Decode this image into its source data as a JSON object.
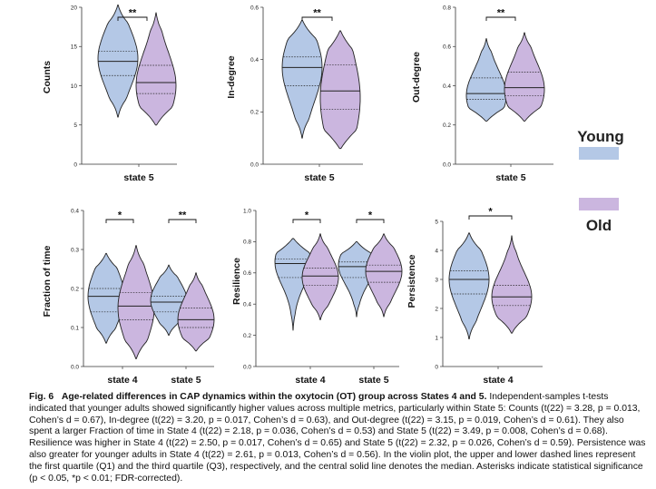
{
  "legend": {
    "young_label": "Young",
    "old_label": "Old",
    "young_color": "#b4c8e6",
    "old_color": "#cbb6df"
  },
  "chart_data": [
    {
      "type": "violin",
      "panel": "counts",
      "ylabel": "Counts",
      "ylim": [
        0,
        20
      ],
      "yticks": [
        "0",
        "5",
        "10",
        "15",
        "20"
      ],
      "categories": [
        "state 5"
      ],
      "groups": [
        {
          "category": "state 5",
          "series": "Young",
          "min": 6,
          "q1": 11.3,
          "median": 13.1,
          "q3": 14.4,
          "max": 20.3,
          "mode": 13.5
        },
        {
          "category": "state 5",
          "series": "Old",
          "min": 5,
          "q1": 9.0,
          "median": 10.4,
          "q3": 12.6,
          "max": 19.3,
          "mode": 10.0
        }
      ],
      "significance": [
        {
          "category": "state 5",
          "label": "**"
        }
      ]
    },
    {
      "type": "violin",
      "panel": "in-degree",
      "ylabel": "In-degree",
      "ylim": [
        0,
        0.6
      ],
      "yticks": [
        "0.0",
        "0.2",
        "0.4",
        "0.6"
      ],
      "categories": [
        "state 5"
      ],
      "groups": [
        {
          "category": "state 5",
          "series": "Young",
          "min": 0.1,
          "q1": 0.3,
          "median": 0.37,
          "q3": 0.41,
          "max": 0.55,
          "mode": 0.37
        },
        {
          "category": "state 5",
          "series": "Old",
          "min": 0.06,
          "q1": 0.21,
          "median": 0.28,
          "q3": 0.38,
          "max": 0.51,
          "mode": 0.25
        }
      ],
      "significance": [
        {
          "category": "state 5",
          "label": "**"
        }
      ]
    },
    {
      "type": "violin",
      "panel": "out-degree",
      "ylabel": "Out-degree",
      "ylim": [
        0,
        0.8
      ],
      "yticks": [
        "0.0",
        "0.2",
        "0.4",
        "0.6",
        "0.8"
      ],
      "categories": [
        "state 5"
      ],
      "groups": [
        {
          "category": "state 5",
          "series": "Young",
          "min": 0.22,
          "q1": 0.33,
          "median": 0.36,
          "q3": 0.44,
          "max": 0.64,
          "mode": 0.35
        },
        {
          "category": "state 5",
          "series": "Old",
          "min": 0.22,
          "q1": 0.35,
          "median": 0.39,
          "q3": 0.47,
          "max": 0.67,
          "mode": 0.38
        }
      ],
      "significance": [
        {
          "category": "state 5",
          "label": "**"
        }
      ]
    },
    {
      "type": "violin",
      "panel": "fraction-of-time",
      "ylabel": "Fraction of time",
      "ylim": [
        0,
        0.4
      ],
      "yticks": [
        "0.0",
        "0.1",
        "0.2",
        "0.3",
        "0.4"
      ],
      "categories": [
        "state 4",
        "state 5"
      ],
      "groups": [
        {
          "category": "state 4",
          "series": "Young",
          "min": 0.06,
          "q1": 0.14,
          "median": 0.18,
          "q3": 0.2,
          "max": 0.29,
          "mode": 0.18
        },
        {
          "category": "state 4",
          "series": "Old",
          "min": 0.02,
          "q1": 0.12,
          "median": 0.155,
          "q3": 0.19,
          "max": 0.31,
          "mode": 0.15
        },
        {
          "category": "state 5",
          "series": "Young",
          "min": 0.08,
          "q1": 0.14,
          "median": 0.165,
          "q3": 0.18,
          "max": 0.26,
          "mode": 0.17
        },
        {
          "category": "state 5",
          "series": "Old",
          "min": 0.04,
          "q1": 0.1,
          "median": 0.12,
          "q3": 0.15,
          "max": 0.24,
          "mode": 0.12
        }
      ],
      "significance": [
        {
          "category": "state 4",
          "label": "*"
        },
        {
          "category": "state 5",
          "label": "**"
        }
      ]
    },
    {
      "type": "violin",
      "panel": "resilience",
      "ylabel": "Resilience",
      "ylim": [
        0,
        1.0
      ],
      "yticks": [
        "0.0",
        "0.2",
        "0.4",
        "0.6",
        "0.8",
        "1.0"
      ],
      "categories": [
        "state 4",
        "state 5"
      ],
      "groups": [
        {
          "category": "state 4",
          "series": "Young",
          "min": 0.23,
          "q1": 0.57,
          "median": 0.66,
          "q3": 0.69,
          "max": 0.82,
          "mode": 0.67
        },
        {
          "category": "state 4",
          "series": "Old",
          "min": 0.3,
          "q1": 0.52,
          "median": 0.58,
          "q3": 0.63,
          "max": 0.85,
          "mode": 0.57
        },
        {
          "category": "state 5",
          "series": "Young",
          "min": 0.32,
          "q1": 0.57,
          "median": 0.64,
          "q3": 0.67,
          "max": 0.8,
          "mode": 0.65
        },
        {
          "category": "state 5",
          "series": "Old",
          "min": 0.32,
          "q1": 0.54,
          "median": 0.61,
          "q3": 0.65,
          "max": 0.85,
          "mode": 0.61
        }
      ],
      "significance": [
        {
          "category": "state 4",
          "label": "*"
        },
        {
          "category": "state 5",
          "label": "*"
        }
      ]
    },
    {
      "type": "violin",
      "panel": "persistence",
      "ylabel": "Persistence",
      "ylim": [
        0,
        5
      ],
      "yticks": [
        "0",
        "1",
        "2",
        "3",
        "4",
        "5"
      ],
      "categories": [
        "state 4"
      ],
      "groups": [
        {
          "category": "state 4",
          "series": "Young",
          "min": 0.95,
          "q1": 2.5,
          "median": 3.0,
          "q3": 3.3,
          "max": 4.6,
          "mode": 3.0
        },
        {
          "category": "state 4",
          "series": "Old",
          "min": 1.15,
          "q1": 2.1,
          "median": 2.4,
          "q3": 2.8,
          "max": 4.5,
          "mode": 2.4
        }
      ],
      "significance": [
        {
          "category": "state 4",
          "label": "*"
        }
      ]
    }
  ],
  "caption": {
    "fig_number": "Fig. 6",
    "title": "Age-related differences in CAP dynamics within the oxytocin (OT) group across States 4 and 5.",
    "body": "Independent-samples t-tests indicated that younger adults showed significantly higher values across multiple metrics, particularly within State 5: Counts (t(22) = 3.28, p = 0.013, Cohen’s d = 0.67), In-degree (t(22) = 3.20, p = 0.017, Cohen’s d = 0.63), and Out-degree (t(22) = 3.15, p = 0.019, Cohen’s d = 0.61). They also spent a larger Fraction of time in State 4 (t(22) = 2.18, p = 0.036, Cohen’s d = 0.53) and State 5 (t(22) = 3.49, p = 0.008, Cohen’s d = 0.68). Resilience was higher in State 4 (t(22) = 2.50, p = 0.017, Cohen’s d = 0.65) and State 5 (t(22) = 2.32, p = 0.026, Cohen’s d = 0.59). Persistence was also greater for younger adults in State 4 (t(22) = 2.61, p = 0.013, Cohen’s d = 0.56). In the violin plot, the upper and lower dashed lines represent the first quartile (Q1) and the third quartile (Q3), respectively, and the central solid line denotes the median. Asterisks indicate statistical significance (p < 0.05, *p < 0.01; FDR-corrected)."
  }
}
